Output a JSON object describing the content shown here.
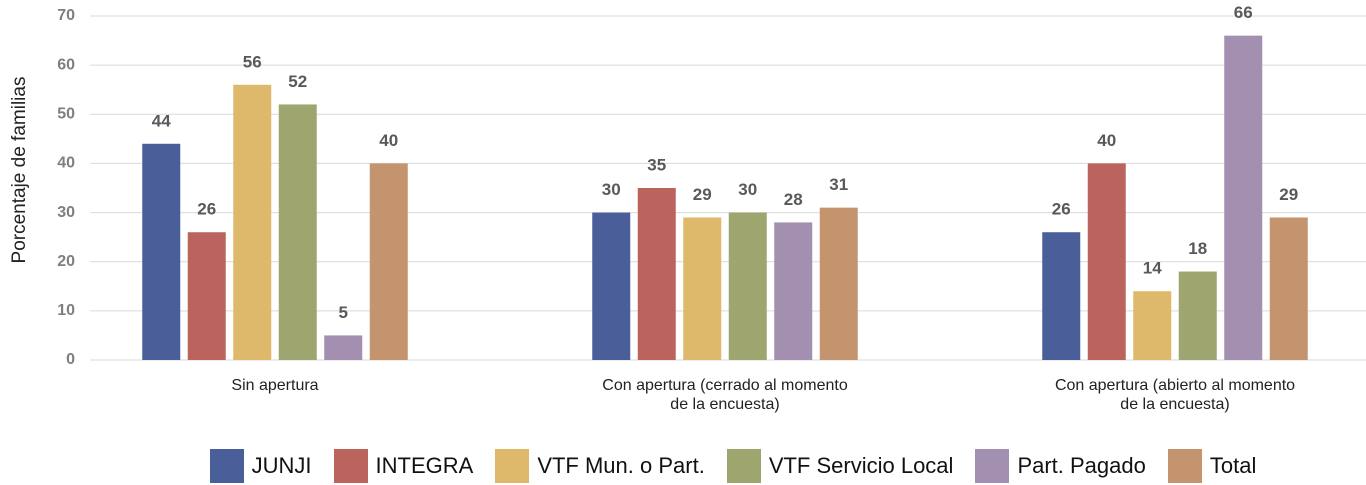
{
  "chart_data": {
    "type": "bar",
    "y_label": "Porcentaje de familias",
    "categories": [
      "Sin apertura",
      "Con apertura (cerrado al momento de la encuesta)",
      "Con apertura (abierto al momento de la encuesta)"
    ],
    "series": [
      {
        "name": "JUNJI",
        "color": "#4a5f9a",
        "values": [
          44,
          30,
          26
        ]
      },
      {
        "name": "INTEGRA",
        "color": "#bb635d",
        "values": [
          26,
          35,
          40
        ]
      },
      {
        "name": "VTF Mun. o Part.",
        "color": "#deb96c",
        "values": [
          56,
          29,
          14
        ]
      },
      {
        "name": "VTF Servicio Local",
        "color": "#9ea56f",
        "values": [
          52,
          30,
          18
        ]
      },
      {
        "name": "Part. Pagado",
        "color": "#a38fb0",
        "values": [
          5,
          28,
          66
        ]
      },
      {
        "name": "Total",
        "color": "#c3946d",
        "values": [
          40,
          31,
          29
        ]
      }
    ],
    "ylim": [
      0,
      70
    ],
    "yticks": [
      0,
      10,
      20,
      30,
      40,
      50,
      60,
      70
    ],
    "grid": true
  }
}
